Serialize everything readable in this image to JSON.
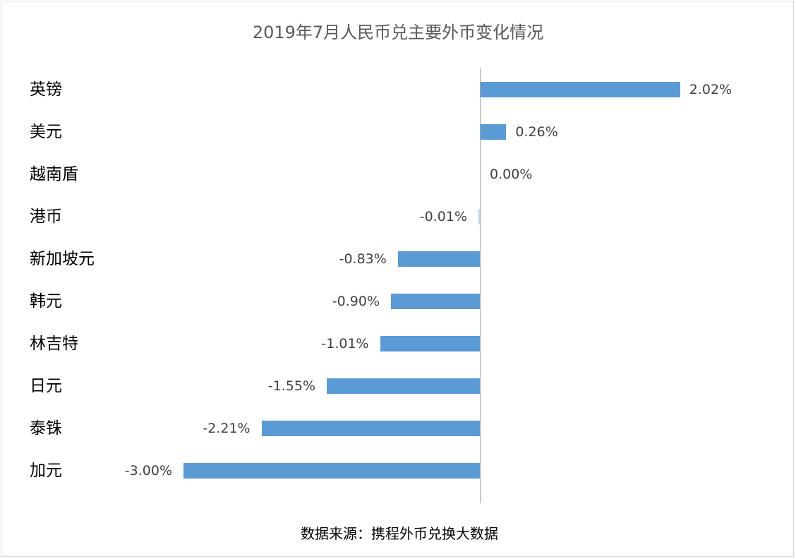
{
  "chart_data": {
    "type": "bar",
    "orientation": "horizontal",
    "title": "2019年7月人民币兑主要外币变化情况",
    "categories": [
      "英镑",
      "美元",
      "越南盾",
      "港币",
      "新加坡元",
      "韩元",
      "林吉特",
      "日元",
      "泰铢",
      "加元"
    ],
    "values": [
      2.02,
      0.26,
      0.0,
      -0.01,
      -0.83,
      -0.9,
      -1.01,
      -1.55,
      -2.21,
      -3.0
    ],
    "labels": [
      "2.02%",
      "0.26%",
      "0.00%",
      "-0.01%",
      "-0.83%",
      "-0.90%",
      "-1.01%",
      "-1.55%",
      "-2.21%",
      "-3.00%"
    ],
    "unit": "%",
    "xlabel": "",
    "ylabel": "",
    "xlim": [
      -3.0,
      2.02
    ],
    "grid": false,
    "legend": null,
    "bar_color": "#5b9bd5",
    "source_note": "数据来源：携程外币兑换大数据"
  },
  "title": "2019年7月人民币兑主要外币变化情况",
  "source": "数据来源：携程外币兑换大数据"
}
